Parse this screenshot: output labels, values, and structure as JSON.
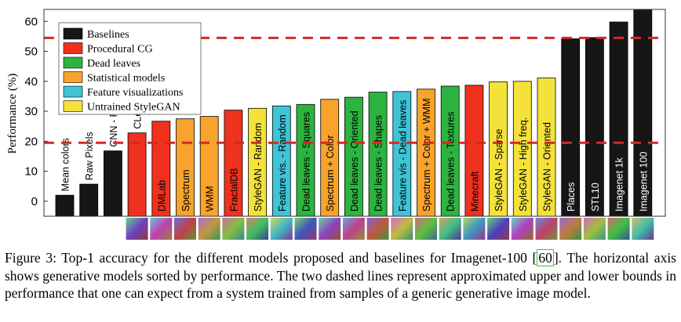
{
  "chart_data": {
    "type": "bar",
    "title": "",
    "xlabel": "",
    "ylabel": "Performance (%)",
    "ylim": [
      -5,
      64
    ],
    "yticks": [
      0,
      10,
      20,
      30,
      40,
      50,
      60
    ],
    "grid": false,
    "legend_position": "top-left",
    "reference_lines": [
      {
        "value": 54.5,
        "style": "dashed",
        "color": "#d42a1f"
      },
      {
        "value": 19.5,
        "style": "dashed",
        "color": "#d42a1f"
      }
    ],
    "groups": [
      {
        "name": "Baselines",
        "color": "#161616"
      },
      {
        "name": "Procedural CG",
        "color": "#f0311e"
      },
      {
        "name": "Dead leaves",
        "color": "#2cb340"
      },
      {
        "name": "Statistical models",
        "color": "#f7a32c"
      },
      {
        "name": "Feature visualizations",
        "color": "#3ec4d6"
      },
      {
        "name": "Untrained StyleGAN",
        "color": "#f4e23a"
      }
    ],
    "categories": [
      "Mean colors",
      "Raw Pixels",
      "CNN - Rand",
      "CLeVR",
      "DMLab",
      "Spectrum",
      "WMM",
      "FractalDB",
      "StyleGAN - Random",
      "Feature vis. - Random",
      "Dead leaves - Squares",
      "Spectrum + Color",
      "Dead leaves - Oriented",
      "Dead leaves - Shapes",
      "Feature vis - Dead leaves",
      "Spectrum + Color + WMM",
      "Dead leaves - Textures",
      "Minecraft",
      "StyleGAN - Sparse",
      "StyleGAN - High freq.",
      "StyleGAN - Oriented",
      "Places",
      "STL10",
      "Imagenet 1k",
      "Imagenet 100"
    ],
    "values": [
      2.0,
      5.7,
      16.8,
      22.8,
      26.7,
      27.5,
      28.3,
      30.4,
      31.0,
      31.8,
      32.3,
      34.0,
      34.7,
      36.4,
      36.6,
      37.4,
      38.4,
      38.7,
      39.8,
      40.0,
      41.1,
      54.2,
      54.6,
      59.8,
      64.0
    ],
    "bar_groups": [
      "Baselines",
      "Baselines",
      "Baselines",
      "Procedural CG",
      "Procedural CG",
      "Statistical models",
      "Statistical models",
      "Procedural CG",
      "Untrained StyleGAN",
      "Feature visualizations",
      "Dead leaves",
      "Statistical models",
      "Dead leaves",
      "Dead leaves",
      "Feature visualizations",
      "Statistical models",
      "Dead leaves",
      "Procedural CG",
      "Untrained StyleGAN",
      "Untrained StyleGAN",
      "Untrained StyleGAN",
      "Baselines",
      "Baselines",
      "Baselines",
      "Baselines"
    ]
  },
  "caption": {
    "label": "Figure 3:",
    "text_before_ref": "Top-1 accuracy for the different models proposed and baselines for Imagenet-100 [",
    "ref": "60",
    "text_after_ref": "]. The horizontal axis shows generative models sorted by performance. The two dashed lines represent approximated upper and lower bounds in performance that one can expect from a system trained from samples of a generic generative image model."
  }
}
